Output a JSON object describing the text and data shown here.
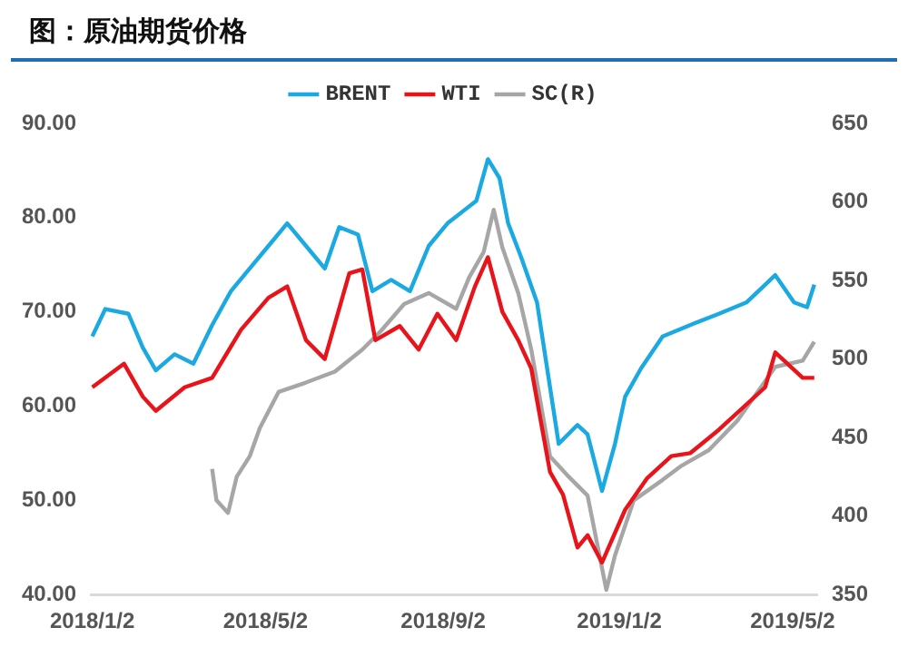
{
  "chart_data": {
    "type": "line",
    "title": "图：原油期货价格",
    "xlim": [
      "2018-01-01",
      "2019-05-19"
    ],
    "xticks": [
      {
        "value": "2018-01-02",
        "label": "2018/1/2"
      },
      {
        "value": "2018-05-02",
        "label": "2018/5/2"
      },
      {
        "value": "2018-09-02",
        "label": "2018/9/2"
      },
      {
        "value": "2019-01-02",
        "label": "2019/1/2"
      },
      {
        "value": "2019-05-02",
        "label": "2019/5/2"
      }
    ],
    "ylim": [
      40,
      90
    ],
    "yticks": [
      {
        "value": 40,
        "label": "40.00"
      },
      {
        "value": 50,
        "label": "50.00"
      },
      {
        "value": 60,
        "label": "60.00"
      },
      {
        "value": 70,
        "label": "70.00"
      },
      {
        "value": 80,
        "label": "80.00"
      },
      {
        "value": 90,
        "label": "90.00"
      }
    ],
    "y2lim": [
      350,
      650
    ],
    "y2ticks": [
      350,
      400,
      450,
      500,
      550,
      600,
      650
    ],
    "grid": false,
    "legend": "top",
    "marker": "none",
    "line_style": "solid",
    "series": [
      {
        "name": "BRENT",
        "color": "#1ba9e1",
        "x": [
          "2018-01-02",
          "2018-01-11",
          "2018-01-27",
          "2018-02-06",
          "2018-02-15",
          "2018-02-28",
          "2018-03-13",
          "2018-03-26",
          "2018-04-08",
          "2018-04-21",
          "2018-05-04",
          "2018-05-17",
          "2018-05-30",
          "2018-06-12",
          "2018-06-22",
          "2018-07-05",
          "2018-07-15",
          "2018-07-28",
          "2018-08-10",
          "2018-08-23",
          "2018-09-05",
          "2018-09-15",
          "2018-09-25",
          "2018-10-03",
          "2018-10-11",
          "2018-10-17",
          "2018-10-26",
          "2018-11-06",
          "2018-11-12",
          "2018-11-21",
          "2018-12-04",
          "2018-12-11",
          "2018-12-21",
          "2018-12-30",
          "2019-01-06",
          "2019-01-17",
          "2019-02-01",
          "2019-02-20",
          "2019-03-12",
          "2019-03-31",
          "2019-04-20",
          "2019-05-03",
          "2019-05-12",
          "2019-05-17"
        ],
        "values": [
          67.4,
          70.3,
          69.8,
          66.2,
          63.8,
          65.5,
          64.5,
          68.6,
          72.2,
          74.6,
          77,
          79.4,
          77,
          74.6,
          79,
          78.2,
          72.2,
          73.4,
          72.2,
          77,
          79.4,
          80.6,
          81.8,
          86.2,
          84.2,
          79.4,
          75.8,
          71,
          65,
          56,
          58,
          57,
          51,
          56,
          61,
          64,
          67.4,
          68.6,
          69.8,
          71,
          73.9,
          71,
          70.5,
          72.9
        ]
      },
      {
        "name": "WTI",
        "color": "#e8141a",
        "x": [
          "2018-01-02",
          "2018-01-24",
          "2018-02-06",
          "2018-02-15",
          "2018-03-07",
          "2018-03-26",
          "2018-04-15",
          "2018-05-04",
          "2018-05-17",
          "2018-05-30",
          "2018-06-12",
          "2018-06-29",
          "2018-07-08",
          "2018-07-17",
          "2018-08-03",
          "2018-08-16",
          "2018-08-29",
          "2018-09-11",
          "2018-09-24",
          "2018-10-03",
          "2018-10-13",
          "2018-10-24",
          "2018-11-02",
          "2018-11-15",
          "2018-11-24",
          "2018-12-04",
          "2018-12-11",
          "2018-12-21",
          "2019-01-06",
          "2019-01-21",
          "2019-02-07",
          "2019-02-20",
          "2019-03-12",
          "2019-04-13",
          "2019-04-20",
          "2019-05-09",
          "2019-05-17"
        ],
        "values": [
          62,
          64.5,
          61,
          59.5,
          62,
          63,
          68.1,
          71.5,
          72.7,
          67,
          65,
          74.1,
          74.5,
          67,
          68.5,
          66,
          69.8,
          67,
          72.7,
          75.8,
          70,
          67,
          64,
          53,
          50.6,
          45,
          46.3,
          43.4,
          49,
          52.3,
          54.7,
          55,
          57.5,
          62,
          65.7,
          63,
          63
        ]
      },
      {
        "name": "SC(R)",
        "color": "#a6a6a6",
        "axis": "y2",
        "x": [
          "2018-03-26",
          "2018-03-29",
          "2018-04-06",
          "2018-04-12",
          "2018-04-21",
          "2018-04-28",
          "2018-05-11",
          "2018-05-30",
          "2018-06-19",
          "2018-07-08",
          "2018-07-21",
          "2018-08-06",
          "2018-08-23",
          "2018-09-11",
          "2018-09-20",
          "2018-09-30",
          "2018-10-07",
          "2018-10-13",
          "2018-10-24",
          "2018-11-02",
          "2018-11-15",
          "2018-11-28",
          "2018-12-11",
          "2018-12-24",
          "2018-12-30",
          "2019-01-12",
          "2019-02-01",
          "2019-02-14",
          "2019-03-05",
          "2019-03-25",
          "2019-04-20",
          "2019-05-09",
          "2019-05-17"
        ],
        "values": [
          430,
          410,
          402,
          425,
          438,
          456,
          479,
          485,
          492,
          506,
          518,
          535,
          542,
          532,
          552,
          568,
          595,
          571,
          542,
          506,
          438,
          425,
          413,
          353,
          375,
          410,
          423,
          432,
          442,
          461,
          495,
          499,
          511
        ]
      }
    ]
  }
}
